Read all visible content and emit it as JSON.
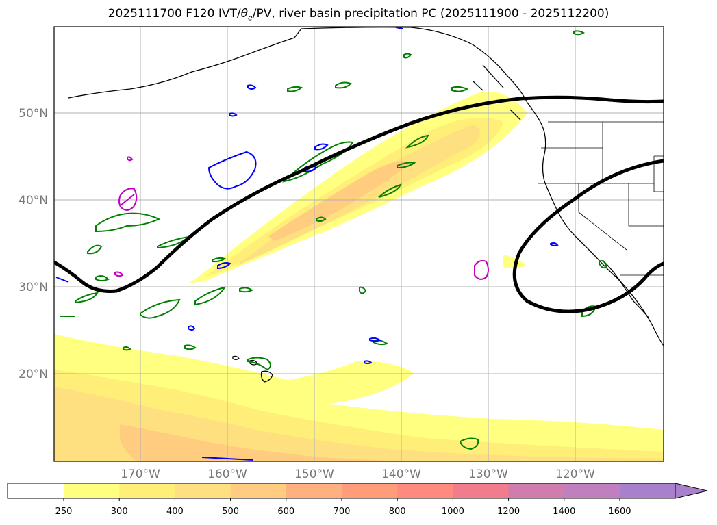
{
  "title": {
    "date": "2025111700",
    "forecast": "F120",
    "ivt_label": "IVT/",
    "theta_symbol": "θ",
    "theta_sub": "e",
    "pv_label": "/PV, river basin precipitation PC",
    "period": "(2025111900 - 2025112200)"
  },
  "map": {
    "lat_labels": [
      "50°N",
      "40°N",
      "30°N",
      "20°N"
    ],
    "lon_labels": [
      "170°W",
      "160°W",
      "150°W",
      "140°W",
      "130°W",
      "120°W"
    ],
    "colors": {
      "ivt_250": "#ffff80",
      "ivt_300": "#ffee77",
      "ivt_400": "#ffe080",
      "ivt_500": "#ffcc80",
      "coast": "#000000",
      "grid": "#b0b0b0",
      "pv_line": "#000000",
      "green_contour": "#008000",
      "blue_contour": "#0000ff",
      "magenta_contour": "#c000c0"
    }
  },
  "colorbar": {
    "ticks": [
      "250",
      "300",
      "400",
      "500",
      "600",
      "700",
      "800",
      "1000",
      "1200",
      "1400",
      "1600"
    ],
    "colors": [
      "#ffff80",
      "#ffee77",
      "#ffe080",
      "#ffcc80",
      "#ffb080",
      "#ff9c7a",
      "#ff8a80",
      "#f07c8c",
      "#d07cac",
      "#c080c0",
      "#a880cc"
    ]
  }
}
